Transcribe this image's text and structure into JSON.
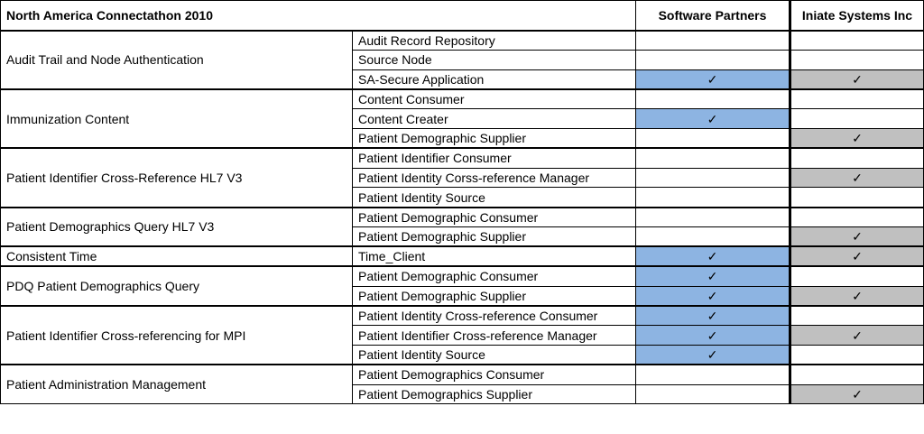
{
  "title": "North America Connectathon 2010",
  "vendors": [
    "Software Partners",
    "Iniate Systems Inc"
  ],
  "check_glyph": "✓",
  "colors": {
    "software_partners_fill": "#8db4e2",
    "iniate_fill": "#c0c0c0"
  },
  "groups": [
    {
      "name": "Audit Trail and Node Authentication",
      "actors": [
        {
          "name": "Audit Record Repository",
          "sp": false,
          "ii": false
        },
        {
          "name": "Source Node",
          "sp": false,
          "ii": false
        },
        {
          "name": "SA-Secure Application",
          "sp": true,
          "ii": true
        }
      ]
    },
    {
      "name": "Immunization Content",
      "actors": [
        {
          "name": "Content Consumer",
          "sp": false,
          "ii": false
        },
        {
          "name": "Content Creater",
          "sp": true,
          "ii": false
        },
        {
          "name": "Patient Demographic Supplier",
          "sp": false,
          "ii": true
        }
      ]
    },
    {
      "name": "Patient Identifier Cross-Reference HL7 V3",
      "actors": [
        {
          "name": "Patient Identifier Consumer",
          "sp": false,
          "ii": false
        },
        {
          "name": "Patient Identity Corss-reference Manager",
          "sp": false,
          "ii": true
        },
        {
          "name": "Patient Identity Source",
          "sp": false,
          "ii": false
        }
      ]
    },
    {
      "name": "Patient Demographics Query HL7 V3",
      "actors": [
        {
          "name": "Patient Demographic Consumer",
          "sp": false,
          "ii": false
        },
        {
          "name": "Patient Demographic Supplier",
          "sp": false,
          "ii": true
        }
      ]
    },
    {
      "name": "Consistent Time",
      "actors": [
        {
          "name": "Time_Client",
          "sp": true,
          "ii": true
        }
      ]
    },
    {
      "name": "PDQ Patient Demographics Query",
      "actors": [
        {
          "name": "Patient Demographic Consumer",
          "sp": true,
          "ii": false
        },
        {
          "name": "Patient Demographic Supplier",
          "sp": true,
          "ii": true
        }
      ]
    },
    {
      "name": "Patient Identifier Cross-referencing for MPI",
      "actors": [
        {
          "name": "Patient Identity Cross-reference Consumer",
          "sp": true,
          "ii": false
        },
        {
          "name": "Patient Identifier Cross-reference Manager",
          "sp": true,
          "ii": true
        },
        {
          "name": "Patient Identity Source",
          "sp": true,
          "ii": false
        }
      ]
    },
    {
      "name": "Patient Administration Management",
      "actors": [
        {
          "name": "Patient Demographics Consumer",
          "sp": false,
          "ii": false
        },
        {
          "name": "Patient Demographics Supplier",
          "sp": false,
          "ii": true
        }
      ]
    }
  ]
}
